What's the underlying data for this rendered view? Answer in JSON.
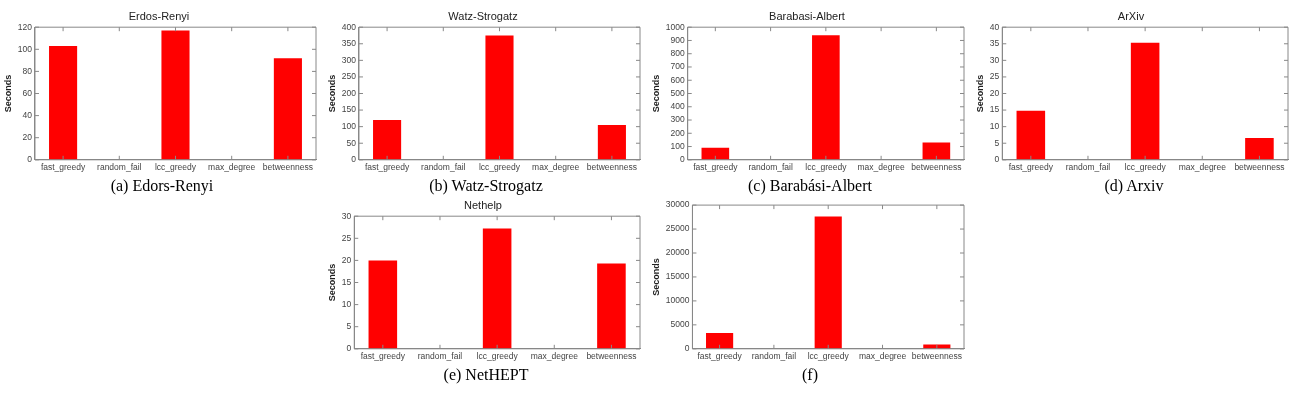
{
  "chart_data": [
    {
      "type": "bar",
      "title": "Erdos-Renyi",
      "ylabel": "Seconds",
      "categories": [
        "fast_greedy",
        "random_fail",
        "lcc_greedy",
        "max_degree",
        "betweenness"
      ],
      "values": [
        103,
        0,
        117,
        0,
        92
      ],
      "color": "#ff0000",
      "ylim": [
        0,
        120
      ],
      "yticks": [
        0,
        20,
        40,
        60,
        80,
        100,
        120
      ],
      "grid": false,
      "annotations": [
        "(a)  Edors-Renyi"
      ]
    },
    {
      "type": "bar",
      "title": "Watz-Strogatz",
      "ylabel": "Seconds",
      "categories": [
        "fast_greedy",
        "random_fail",
        "lcc_greedy",
        "max_degree",
        "betweenness"
      ],
      "values": [
        120,
        0,
        375,
        0,
        105
      ],
      "color": "#ff0000",
      "ylim": [
        0,
        400
      ],
      "yticks": [
        0,
        50,
        100,
        150,
        200,
        250,
        300,
        350,
        400
      ],
      "grid": false,
      "annotations": [
        "(b)  Watz-Strogatz"
      ]
    },
    {
      "type": "bar",
      "title": "Barabasi-Albert",
      "ylabel": "Seconds",
      "categories": [
        "fast_greedy",
        "random_fail",
        "lcc_greedy",
        "max_degree",
        "betweenness"
      ],
      "values": [
        90,
        0,
        940,
        0,
        130
      ],
      "color": "#ff0000",
      "ylim": [
        0,
        1000
      ],
      "yticks": [
        0,
        100,
        200,
        300,
        400,
        500,
        600,
        700,
        800,
        900,
        1000
      ],
      "grid": false,
      "annotations": [
        "(c)  Barabási-Albert"
      ]
    },
    {
      "type": "bar",
      "title": "ArXiv",
      "ylabel": "Seconds",
      "categories": [
        "fast_greedy",
        "random_fail",
        "lcc_greedy",
        "max_degree",
        "betweenness"
      ],
      "values": [
        14.8,
        0,
        35.3,
        0,
        6.6
      ],
      "color": "#ff0000",
      "ylim": [
        0,
        40
      ],
      "yticks": [
        0,
        5,
        10,
        15,
        20,
        25,
        30,
        35,
        40
      ],
      "grid": false,
      "annotations": [
        "(d)  Arxiv"
      ]
    },
    {
      "type": "bar",
      "title": "Nethelp",
      "ylabel": "Seconds",
      "categories": [
        "fast_greedy",
        "random_fail",
        "lcc_greedy",
        "max_degree",
        "betweenness"
      ],
      "values": [
        20,
        0,
        27.2,
        0,
        19.3
      ],
      "color": "#ff0000",
      "ylim": [
        0,
        30
      ],
      "yticks": [
        0,
        5,
        10,
        15,
        20,
        25,
        30
      ],
      "grid": false,
      "annotations": [
        "(e)  NetHEPT"
      ]
    },
    {
      "type": "bar",
      "ylabel": "Seconds",
      "categories": [
        "fast_greedy",
        "random_fail",
        "lcc_greedy",
        "max_degree",
        "betweenness"
      ],
      "values": [
        3300,
        0,
        27600,
        0,
        900
      ],
      "color": "#ff0000",
      "ylim": [
        0,
        30000
      ],
      "yticks": [
        0,
        5000,
        10000,
        15000,
        20000,
        25000,
        30000
      ],
      "grid": false,
      "annotations": [
        "(f)"
      ]
    }
  ]
}
